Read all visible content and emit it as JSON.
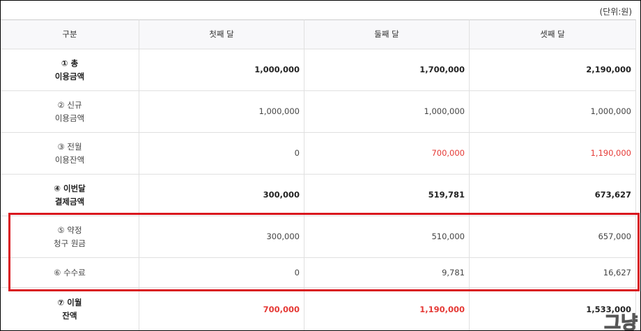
{
  "unit": "(단위:원)",
  "table": {
    "header": [
      "구분",
      "첫째 달",
      "둘째 달",
      "셋째 달"
    ],
    "rows": [
      {
        "label": [
          "① 총",
          "이용금액"
        ],
        "values": [
          "1,000,000",
          "1,700,000",
          "2,190,000"
        ],
        "bold": true,
        "value_colors": [
          "#222",
          "#222",
          "#222"
        ]
      },
      {
        "label": [
          "② 신규",
          "이용금액"
        ],
        "values": [
          "1,000,000",
          "1,000,000",
          "1,000,000"
        ],
        "bold": false,
        "value_colors": [
          "#444",
          "#444",
          "#444"
        ]
      },
      {
        "label": [
          "③ 전월",
          "이용잔액"
        ],
        "values": [
          "0",
          "700,000",
          "1,190,000"
        ],
        "bold": false,
        "value_colors": [
          "#444",
          "#e53935",
          "#e53935"
        ]
      },
      {
        "label": [
          "④ 이번달",
          "결제금액"
        ],
        "values": [
          "300,000",
          "519,781",
          "673,627"
        ],
        "bold": true,
        "value_colors": [
          "#222",
          "#222",
          "#222"
        ]
      },
      {
        "label": [
          "⑤ 약정",
          "청구 원금"
        ],
        "values": [
          "300,000",
          "510,000",
          "657,000"
        ],
        "bold": false,
        "value_colors": [
          "#444",
          "#444",
          "#444"
        ]
      },
      {
        "label": [
          "⑥ 수수료"
        ],
        "values": [
          "0",
          "9,781",
          "16,627"
        ],
        "bold": false,
        "value_colors": [
          "#444",
          "#444",
          "#444"
        ]
      },
      {
        "label": [
          "⑦ 이월",
          "잔액"
        ],
        "values": [
          "700,000",
          "1,190,000",
          "1,533,000"
        ],
        "bold": true,
        "value_colors": [
          "#e53935",
          "#e53935",
          "#222"
        ]
      }
    ]
  },
  "watermark": "그냥"
}
